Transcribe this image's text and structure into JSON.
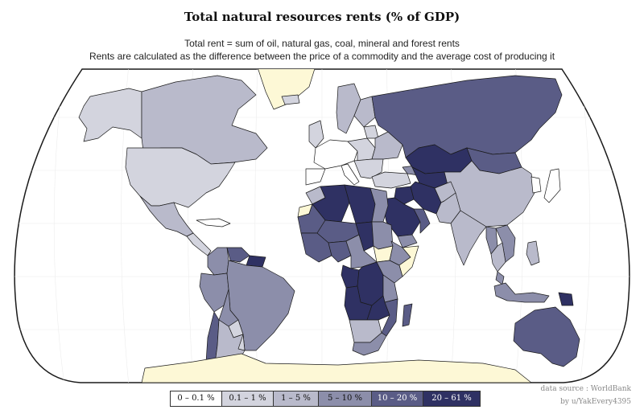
{
  "title": "Total natural resources rents (% of GDP)",
  "subtitle_1": "Total rent = sum of oil, natural gas, coal, mineral and forest rents",
  "subtitle_2": "Rents are calculated as the difference between the price of a commodity and the average cost of producing it",
  "credits": {
    "source": "data source : WorldBank",
    "author": "by u/YakEvery4395"
  },
  "colors": {
    "no_data": "#fdf8d6",
    "ocean": "#ffffff",
    "graticule": "#ececec",
    "border": "#1a1a1a"
  },
  "legend": [
    {
      "label": "0 – 0.1 %",
      "color": "#ffffff",
      "text_color": "#111111"
    },
    {
      "label": "0.1 – 1 %",
      "color": "#d3d4de",
      "text_color": "#111111"
    },
    {
      "label": "1 – 5 %",
      "color": "#b9bacb",
      "text_color": "#111111"
    },
    {
      "label": "5 – 10 %",
      "color": "#8c8eaa",
      "text_color": "#111111"
    },
    {
      "label": "10 – 20 %",
      "color": "#5a5c86",
      "text_color": "#ffffff"
    },
    {
      "label": "20 – 61 %",
      "color": "#2f3163",
      "text_color": "#ffffff"
    }
  ],
  "regions": [
    {
      "id": "alaska",
      "bin": 1
    },
    {
      "id": "canada",
      "bin": 2
    },
    {
      "id": "greenland",
      "bin": -1
    },
    {
      "id": "usa",
      "bin": 1
    },
    {
      "id": "mexico",
      "bin": 2
    },
    {
      "id": "central-america",
      "bin": 1
    },
    {
      "id": "caribbean",
      "bin": 0
    },
    {
      "id": "venezuela",
      "bin": 4
    },
    {
      "id": "colombia",
      "bin": 3
    },
    {
      "id": "guianas",
      "bin": 5
    },
    {
      "id": "ecuador-peru",
      "bin": 3
    },
    {
      "id": "bolivia",
      "bin": 3
    },
    {
      "id": "brazil",
      "bin": 3
    },
    {
      "id": "paraguay",
      "bin": 1
    },
    {
      "id": "chile",
      "bin": 4
    },
    {
      "id": "argentina",
      "bin": 2
    },
    {
      "id": "uruguay",
      "bin": 1
    },
    {
      "id": "iceland",
      "bin": 1
    },
    {
      "id": "scandinavia",
      "bin": 2
    },
    {
      "id": "finland",
      "bin": 2
    },
    {
      "id": "western-europe",
      "bin": 0
    },
    {
      "id": "uk-ireland",
      "bin": 1
    },
    {
      "id": "iberia",
      "bin": 0
    },
    {
      "id": "italy",
      "bin": 0
    },
    {
      "id": "eastern-europe",
      "bin": 1
    },
    {
      "id": "baltics",
      "bin": 1
    },
    {
      "id": "belarus-ukraine",
      "bin": 2
    },
    {
      "id": "balkans",
      "bin": 1
    },
    {
      "id": "turkey",
      "bin": 1
    },
    {
      "id": "russia",
      "bin": 4
    },
    {
      "id": "kazakhstan",
      "bin": 5
    },
    {
      "id": "caucasus",
      "bin": 3
    },
    {
      "id": "central-asia",
      "bin": 5
    },
    {
      "id": "mongolia",
      "bin": 4
    },
    {
      "id": "china",
      "bin": 2
    },
    {
      "id": "korea",
      "bin": 0
    },
    {
      "id": "japan",
      "bin": 0
    },
    {
      "id": "iran",
      "bin": 5
    },
    {
      "id": "iraq",
      "bin": 5
    },
    {
      "id": "saudi-arabia",
      "bin": 5
    },
    {
      "id": "yemen",
      "bin": 3
    },
    {
      "id": "oman-uae",
      "bin": 4
    },
    {
      "id": "afghanistan",
      "bin": 2
    },
    {
      "id": "pakistan",
      "bin": 2
    },
    {
      "id": "india",
      "bin": 2
    },
    {
      "id": "myanmar",
      "bin": 3
    },
    {
      "id": "indochina",
      "bin": 3
    },
    {
      "id": "thailand",
      "bin": 2
    },
    {
      "id": "malaysia",
      "bin": 3
    },
    {
      "id": "indonesia",
      "bin": 3
    },
    {
      "id": "philippines",
      "bin": 2
    },
    {
      "id": "png",
      "bin": 5
    },
    {
      "id": "australia",
      "bin": 4
    },
    {
      "id": "new-zealand",
      "bin": 2
    },
    {
      "id": "morocco",
      "bin": 2
    },
    {
      "id": "west-sahara",
      "bin": -1
    },
    {
      "id": "algeria",
      "bin": 5
    },
    {
      "id": "libya",
      "bin": 5
    },
    {
      "id": "egypt",
      "bin": 3
    },
    {
      "id": "mauritania",
      "bin": 4
    },
    {
      "id": "mali-niger",
      "bin": 4
    },
    {
      "id": "chad",
      "bin": 5
    },
    {
      "id": "sudan",
      "bin": 3
    },
    {
      "id": "south-sudan",
      "bin": -1
    },
    {
      "id": "ethiopia",
      "bin": 3
    },
    {
      "id": "somalia",
      "bin": -1
    },
    {
      "id": "west-africa-coast",
      "bin": 4
    },
    {
      "id": "nigeria",
      "bin": 4
    },
    {
      "id": "cameroon-car",
      "bin": 3
    },
    {
      "id": "congo-gabon",
      "bin": 5
    },
    {
      "id": "drc",
      "bin": 5
    },
    {
      "id": "east-africa",
      "bin": 3
    },
    {
      "id": "tanzania",
      "bin": 3
    },
    {
      "id": "angola",
      "bin": 5
    },
    {
      "id": "zambia",
      "bin": 5
    },
    {
      "id": "mozambique",
      "bin": 4
    },
    {
      "id": "namibia-botswana",
      "bin": 2
    },
    {
      "id": "south-africa",
      "bin": 3
    },
    {
      "id": "madagascar",
      "bin": 4
    },
    {
      "id": "antarctica",
      "bin": -1
    }
  ]
}
